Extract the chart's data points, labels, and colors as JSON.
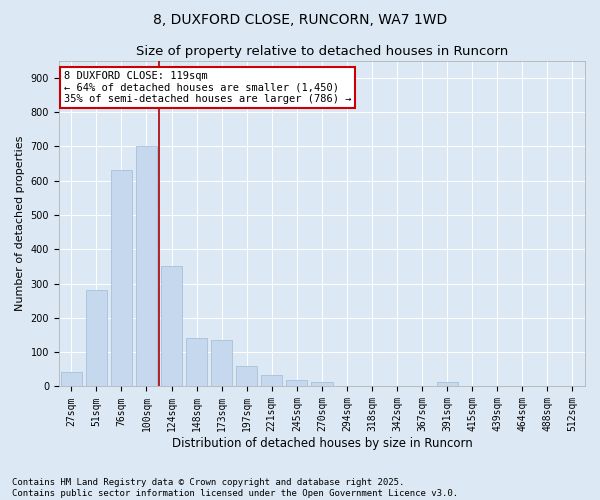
{
  "title1": "8, DUXFORD CLOSE, RUNCORN, WA7 1WD",
  "title2": "Size of property relative to detached houses in Runcorn",
  "xlabel": "Distribution of detached houses by size in Runcorn",
  "ylabel": "Number of detached properties",
  "categories": [
    "27sqm",
    "51sqm",
    "76sqm",
    "100sqm",
    "124sqm",
    "148sqm",
    "173sqm",
    "197sqm",
    "221sqm",
    "245sqm",
    "270sqm",
    "294sqm",
    "318sqm",
    "342sqm",
    "367sqm",
    "391sqm",
    "415sqm",
    "439sqm",
    "464sqm",
    "488sqm",
    "512sqm"
  ],
  "values": [
    42,
    282,
    630,
    700,
    350,
    140,
    135,
    60,
    32,
    20,
    14,
    0,
    0,
    0,
    0,
    14,
    0,
    0,
    0,
    0,
    0
  ],
  "bar_color": "#c5d8ed",
  "bar_edge_color": "#a0bcd6",
  "vline_color": "#aa0000",
  "annotation_text": "8 DUXFORD CLOSE: 119sqm\n← 64% of detached houses are smaller (1,450)\n35% of semi-detached houses are larger (786) →",
  "box_edge_color": "#cc0000",
  "ylim": [
    0,
    950
  ],
  "yticks": [
    0,
    100,
    200,
    300,
    400,
    500,
    600,
    700,
    800,
    900
  ],
  "background_color": "#dce9f5",
  "plot_bg_color": "#dce9f5",
  "footer_text": "Contains HM Land Registry data © Crown copyright and database right 2025.\nContains public sector information licensed under the Open Government Licence v3.0.",
  "title1_fontsize": 10,
  "title2_fontsize": 9.5,
  "xlabel_fontsize": 8.5,
  "ylabel_fontsize": 8,
  "tick_fontsize": 7,
  "footer_fontsize": 6.5,
  "annot_fontsize": 7.5
}
